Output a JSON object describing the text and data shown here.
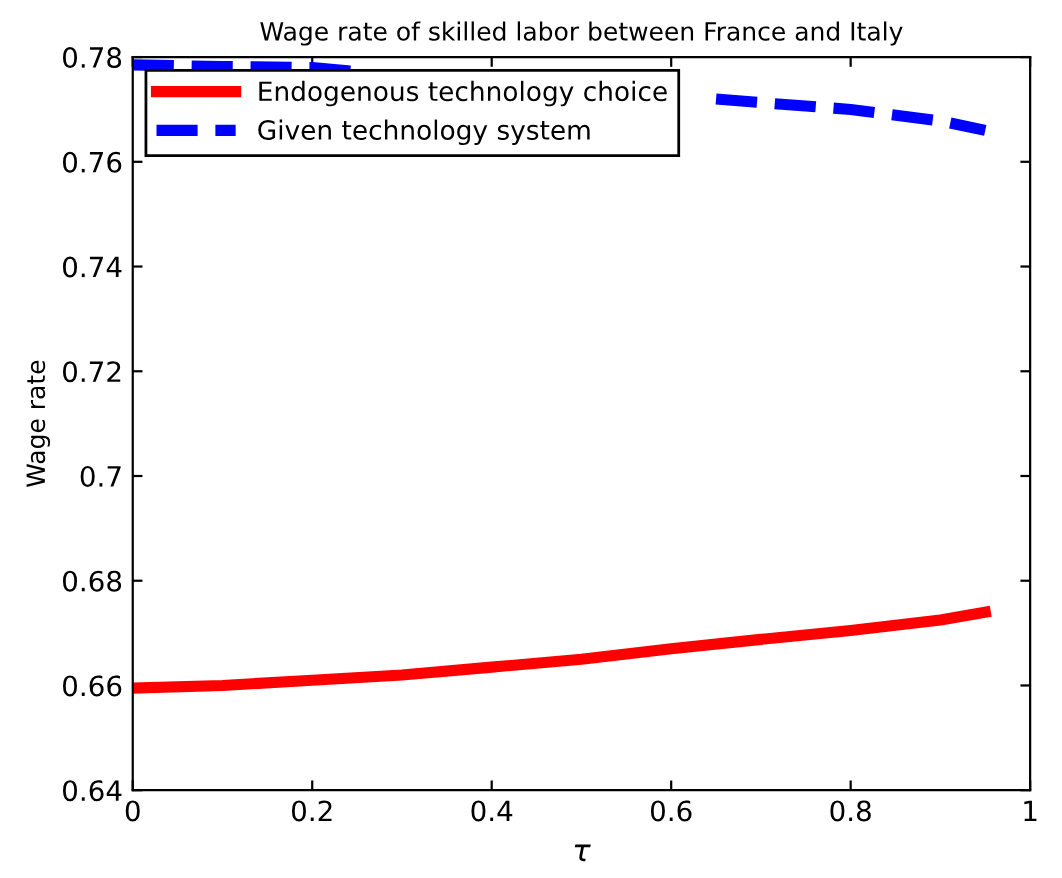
{
  "chart_data": {
    "type": "line",
    "title": "Wage rate of skilled labor between France and Italy",
    "xlabel": "τ",
    "ylabel": "Wage rate",
    "series": [
      {
        "name": "Endogenous technology choice",
        "color": "#ff0000",
        "line_style": "solid",
        "x": [
          0,
          0.1,
          0.2,
          0.3,
          0.4,
          0.5,
          0.6,
          0.7,
          0.8,
          0.9,
          0.95
        ],
        "values": [
          0.6595,
          0.66,
          0.661,
          0.662,
          0.6635,
          0.665,
          0.667,
          0.6688,
          0.6705,
          0.6725,
          0.674
        ]
      },
      {
        "name": "Given technology system",
        "color": "#0000ff",
        "line_style": "dashed",
        "x": [
          0,
          0.1,
          0.2,
          0.25,
          0.3,
          0.65,
          0.7,
          0.8,
          0.9,
          0.95
        ],
        "values": [
          0.7785,
          0.7782,
          0.778,
          0.7772,
          null,
          0.772,
          0.7713,
          0.77,
          0.7678,
          0.766
        ]
      }
    ],
    "xlim": [
      0,
      1
    ],
    "xticks": [
      0,
      0.2,
      0.4,
      0.6,
      0.8,
      1
    ],
    "ylim": [
      0.64,
      0.78
    ],
    "yticks": [
      0.64,
      0.66,
      0.68,
      0.7,
      0.72,
      0.74,
      0.76,
      0.78
    ],
    "grid": false,
    "legend": "top left"
  }
}
